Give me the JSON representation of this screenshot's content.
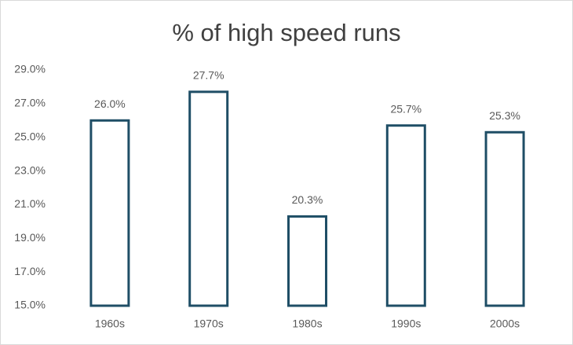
{
  "chart_data": {
    "type": "bar",
    "title": "% of high speed runs",
    "categories": [
      "1960s",
      "1970s",
      "1980s",
      "1990s",
      "2000s"
    ],
    "values": [
      26.0,
      27.7,
      20.3,
      25.7,
      25.3
    ],
    "value_labels": [
      "26.0%",
      "27.7%",
      "20.3%",
      "25.7%",
      "25.3%"
    ],
    "color": "#1f4e66",
    "ylim": [
      15,
      29
    ],
    "yticks": [
      {
        "value": 15,
        "label": "15.0%"
      },
      {
        "value": 17,
        "label": "17.0%"
      },
      {
        "value": 19,
        "label": "19.0%"
      },
      {
        "value": 21,
        "label": "21.0%"
      },
      {
        "value": 23,
        "label": "23.0%"
      },
      {
        "value": 25,
        "label": "25.0%"
      },
      {
        "value": 27,
        "label": "27.0%"
      },
      {
        "value": 29,
        "label": "29.0%"
      }
    ]
  }
}
